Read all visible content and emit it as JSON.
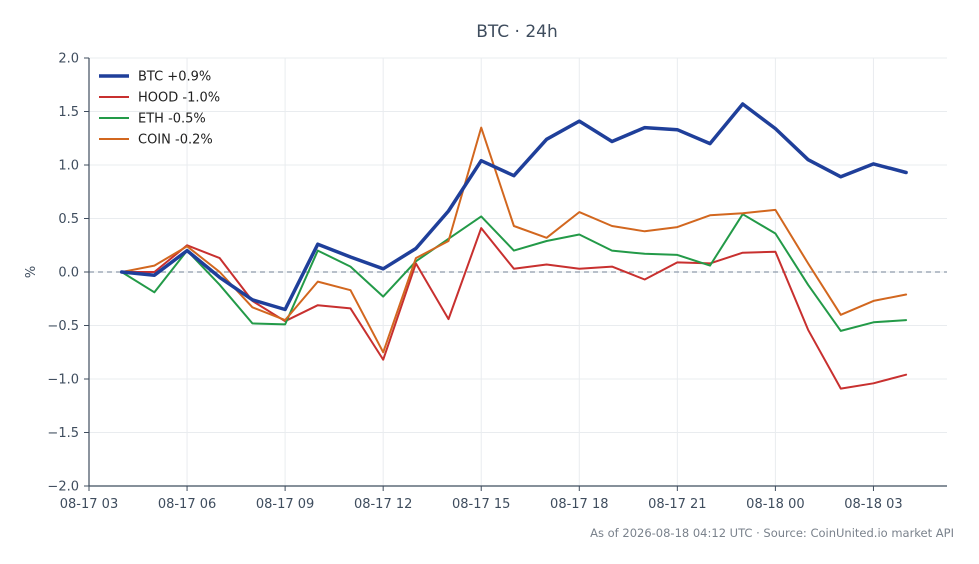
{
  "chart_data": {
    "type": "line",
    "title": "BTC · 24h",
    "xlabel": "",
    "ylabel": "%",
    "ylim": [
      -2.0,
      2.0
    ],
    "yticks": [
      2.0,
      1.5,
      1.0,
      0.5,
      0.0,
      -0.5,
      -1.0,
      -1.5,
      -2.0
    ],
    "ytick_labels": [
      "2.0",
      "1.5",
      "1.0",
      "0.5",
      "0.0",
      "−0.5",
      "−1.0",
      "−1.5",
      "−2.0"
    ],
    "xlim": [
      "2026-08-17 03:00",
      "2026-08-18 05:15"
    ],
    "xticks": [
      "2026-08-17 03:00",
      "2026-08-17 06:00",
      "2026-08-17 09:00",
      "2026-08-17 12:00",
      "2026-08-17 15:00",
      "2026-08-17 18:00",
      "2026-08-17 21:00",
      "2026-08-18 00:00",
      "2026-08-18 03:00"
    ],
    "xtick_labels": [
      "08-17 03",
      "08-17 06",
      "08-17 09",
      "08-17 12",
      "08-17 15",
      "08-17 18",
      "08-17 21",
      "08-18 00",
      "08-18 03"
    ],
    "x": [
      "2026-08-17 04:00",
      "2026-08-17 05:00",
      "2026-08-17 06:00",
      "2026-08-17 07:00",
      "2026-08-17 08:00",
      "2026-08-17 09:00",
      "2026-08-17 10:00",
      "2026-08-17 11:00",
      "2026-08-17 12:00",
      "2026-08-17 13:00",
      "2026-08-17 14:00",
      "2026-08-17 15:00",
      "2026-08-17 16:00",
      "2026-08-17 17:00",
      "2026-08-17 18:00",
      "2026-08-17 19:00",
      "2026-08-17 20:00",
      "2026-08-17 21:00",
      "2026-08-17 22:00",
      "2026-08-17 23:00",
      "2026-08-18 00:00",
      "2026-08-18 01:00",
      "2026-08-18 02:00",
      "2026-08-18 03:00",
      "2026-08-18 04:00"
    ],
    "zero_line": true,
    "grid": true,
    "legend_position": "top-left",
    "series": [
      {
        "name": "BTC +0.9%",
        "color": "#1f3f9a",
        "width": 3.5,
        "values": [
          0.0,
          -0.03,
          0.2,
          -0.05,
          -0.26,
          -0.35,
          0.26,
          0.14,
          0.03,
          0.22,
          0.57,
          1.04,
          0.9,
          1.24,
          1.41,
          1.22,
          1.35,
          1.33,
          1.2,
          1.57,
          1.34,
          1.05,
          0.89,
          1.01,
          0.93
        ]
      },
      {
        "name": "HOOD -1.0%",
        "color": "#c8302f",
        "width": 2,
        "values": [
          0.0,
          0.0,
          0.25,
          0.13,
          -0.27,
          -0.46,
          -0.31,
          -0.34,
          -0.82,
          0.08,
          -0.44,
          0.41,
          0.03,
          0.07,
          0.03,
          0.05,
          -0.07,
          0.09,
          0.08,
          0.18,
          0.19,
          -0.54,
          -1.09,
          -1.04,
          -0.96
        ]
      },
      {
        "name": "ETH -0.5%",
        "color": "#239a48",
        "width": 2,
        "values": [
          0.0,
          -0.19,
          0.2,
          -0.12,
          -0.48,
          -0.49,
          0.2,
          0.05,
          -0.23,
          0.1,
          0.31,
          0.52,
          0.2,
          0.29,
          0.35,
          0.2,
          0.17,
          0.16,
          0.06,
          0.54,
          0.36,
          -0.12,
          -0.55,
          -0.47,
          -0.45
        ]
      },
      {
        "name": "COIN -0.2%",
        "color": "#d2671f",
        "width": 2,
        "values": [
          0.0,
          0.06,
          0.24,
          0.0,
          -0.33,
          -0.45,
          -0.09,
          -0.17,
          -0.75,
          0.13,
          0.29,
          1.35,
          0.43,
          0.32,
          0.56,
          0.43,
          0.38,
          0.42,
          0.53,
          0.55,
          0.58,
          0.08,
          -0.4,
          -0.27,
          -0.21
        ]
      }
    ]
  },
  "footnote": "As of 2026-08-18 04:12 UTC · Source: CoinUnited.io market API"
}
